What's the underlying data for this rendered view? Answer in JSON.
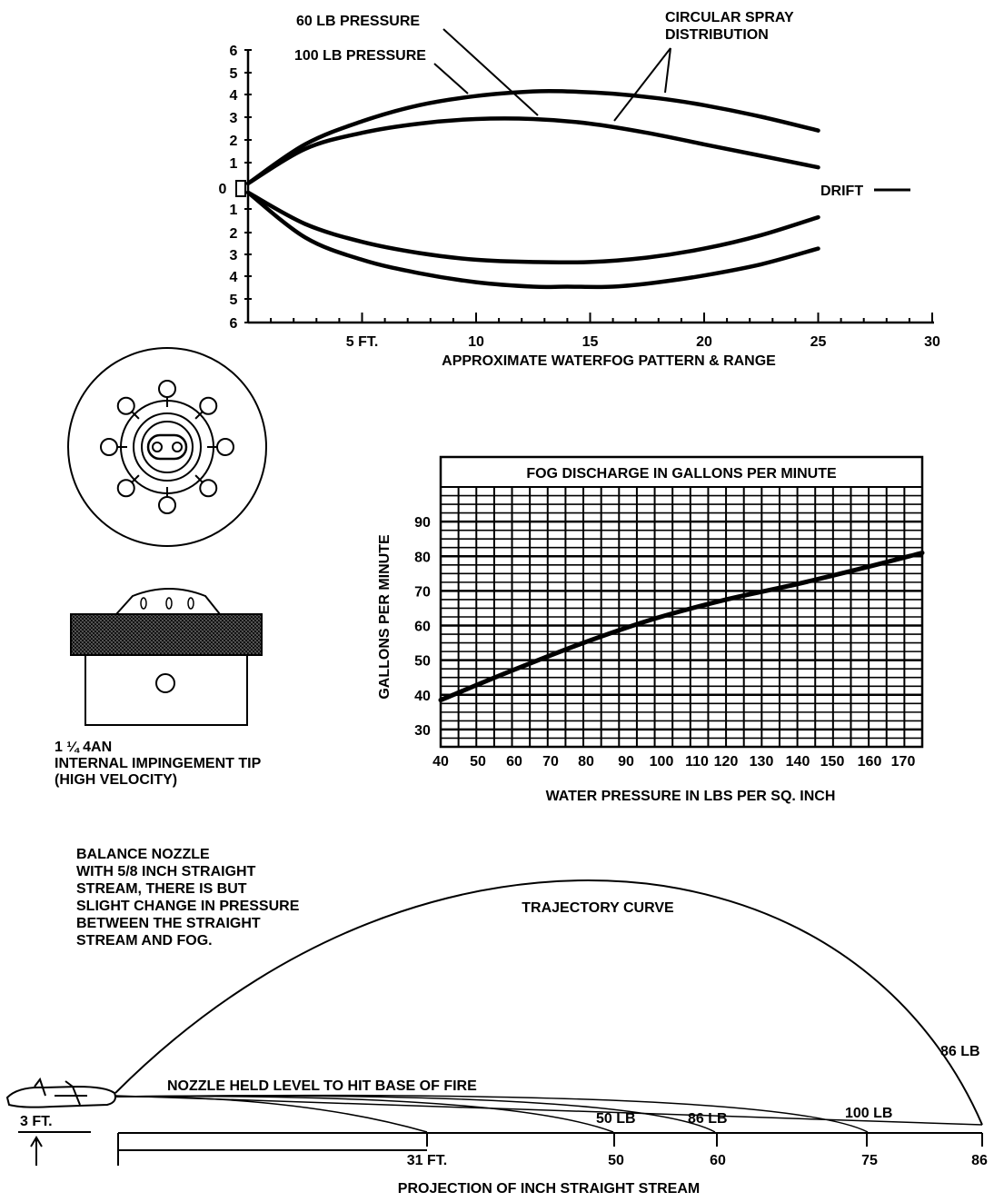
{
  "waterfog": {
    "labels": {
      "p60": "60 LB PRESSURE",
      "p100": "100 LB PRESSURE",
      "circular_line1": "CIRCULAR SPRAY",
      "circular_line2": "DISTRIBUTION",
      "drift": "DRIFT",
      "caption": "APPROXIMATE WATERFOG PATTERN & RANGE"
    },
    "y_ticks_upper": [
      "6",
      "5",
      "4",
      "3",
      "2",
      "1"
    ],
    "y_zero": "0",
    "y_ticks_lower": [
      "1",
      "2",
      "3",
      "4",
      "5",
      "6"
    ],
    "x_tick_labels": [
      {
        "value": 5,
        "text": "5 FT."
      },
      {
        "value": 10,
        "text": "10"
      },
      {
        "value": 15,
        "text": "15"
      },
      {
        "value": 20,
        "text": "20"
      },
      {
        "value": 25,
        "text": "25"
      },
      {
        "value": 30,
        "text": "30"
      }
    ]
  },
  "nozzle": {
    "model_line1": "1 ¼ 4AN",
    "model_line2": "INTERNAL IMPINGEMENT TIP",
    "model_line3": "(HIGH VELOCITY)"
  },
  "fog_discharge": {
    "title": "FOG DISCHARGE IN GALLONS PER MINUTE",
    "ylabel": "GALLONS PER MINUTE",
    "xlabel": "WATER PRESSURE IN LBS PER SQ. INCH",
    "y_tick_labels": [
      "90",
      "80",
      "70",
      "60",
      "50",
      "40",
      "30"
    ],
    "x_tick_labels": [
      "40",
      "50",
      "60",
      "70",
      "80",
      "90",
      "100",
      "110",
      "120",
      "130",
      "140",
      "150",
      "160",
      "170"
    ]
  },
  "trajectory": {
    "note_lines": [
      "BALANCE NOZZLE",
      "WITH 5/8 INCH STRAIGHT",
      "STREAM, THERE IS BUT",
      "SLIGHT CHANGE IN PRESSURE",
      "BETWEEN THE STRAIGHT",
      "STREAM AND FOG."
    ],
    "curve_label": "TRAJECTORY CURVE",
    "level_label": "NOZZLE HELD LEVEL TO HIT BASE OF FIRE",
    "height_label": "3 FT.",
    "label_86_top": "86 LB",
    "label_50": "50 LB",
    "label_86": "86 LB",
    "label_100": "100 LB",
    "x_tick_labels": [
      "31 FT.",
      "50",
      "60",
      "75",
      "86"
    ],
    "caption": "PROJECTION OF INCH STRAIGHT STREAM"
  },
  "chart_data": [
    {
      "type": "line",
      "title": "APPROXIMATE WATERFOG PATTERN & RANGE",
      "xlabel": "",
      "ylabel": "",
      "xlim": [
        0,
        30
      ],
      "ylim": [
        -6,
        6
      ],
      "series": [
        {
          "name": "100 LB PRESSURE",
          "x": [
            0,
            2.5,
            5,
            7.5,
            10,
            12.5,
            14,
            16,
            18,
            20,
            22.5,
            25
          ],
          "upper": [
            0.2,
            1.9,
            2.9,
            3.6,
            4.0,
            4.2,
            4.2,
            4.1,
            3.9,
            3.6,
            3.1,
            2.5
          ],
          "lower": [
            -0.2,
            -2.2,
            -3.2,
            -3.8,
            -4.2,
            -4.4,
            -4.4,
            -4.4,
            -4.2,
            -3.9,
            -3.4,
            -2.7
          ]
        },
        {
          "name": "60 LB PRESSURE",
          "x": [
            0,
            2.5,
            5,
            7.5,
            10,
            12.5,
            15,
            17.5,
            20,
            22.5,
            25
          ],
          "upper": [
            0.2,
            1.7,
            2.4,
            2.8,
            3.0,
            3.0,
            2.8,
            2.4,
            1.9,
            1.4,
            0.9
          ],
          "lower": [
            -0.2,
            -1.6,
            -2.4,
            -2.9,
            -3.2,
            -3.3,
            -3.3,
            -3.1,
            -2.7,
            -2.1,
            -1.3
          ]
        }
      ]
    },
    {
      "type": "line",
      "title": "FOG DISCHARGE IN GALLONS PER MINUTE",
      "xlabel": "WATER PRESSURE IN LBS PER SQ. INCH",
      "ylabel": "GALLONS PER MINUTE",
      "xlim": [
        40,
        175
      ],
      "ylim": [
        25,
        100
      ],
      "grid": true,
      "series": [
        {
          "name": "",
          "x": [
            40,
            60,
            80,
            100,
            120,
            140,
            160,
            175
          ],
          "y": [
            38.5,
            47,
            55,
            62,
            67.5,
            72,
            77,
            81
          ]
        }
      ]
    },
    {
      "type": "line",
      "title": "PROJECTION OF INCH STRAIGHT STREAM",
      "xlabel": "",
      "ylabel": "",
      "series": [
        {
          "name": "86 LB TRAJECTORY",
          "x": [
            0,
            86
          ],
          "range_ft": 86
        },
        {
          "name": "LEVEL STREAM",
          "x": [
            0,
            31,
            50,
            60,
            75
          ],
          "range_ft": [
            31,
            50,
            60,
            75
          ]
        }
      ]
    }
  ]
}
